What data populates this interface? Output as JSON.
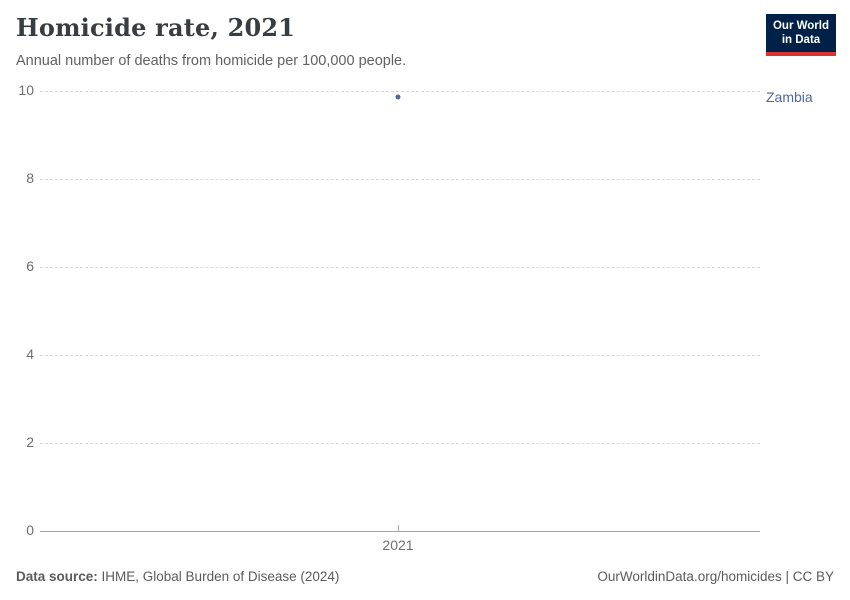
{
  "header": {
    "title": "Homicide rate, 2021",
    "subtitle": "Annual number of deaths from homicide per 100,000 people.",
    "logo": {
      "line1": "Our World",
      "line2": "in Data",
      "bg_color": "#002147",
      "stripe_color": "#d8352e"
    }
  },
  "chart_data": {
    "type": "scatter",
    "title": "Homicide rate, 2021",
    "subtitle": "Annual number of deaths from homicide per 100,000 people.",
    "x": [
      2021
    ],
    "x_ticks": [
      "2021"
    ],
    "y_ticks": [
      0,
      2,
      4,
      6,
      8,
      10
    ],
    "ylim": [
      0,
      10
    ],
    "grid": "horizontal-dashed",
    "legend_position": "entity-label-right",
    "series": [
      {
        "name": "Zambia",
        "color": "#4c6a9c",
        "points": [
          {
            "x": 2021,
            "y": 9.87
          }
        ]
      }
    ]
  },
  "footer": {
    "source_label": "Data source:",
    "source_text": " IHME, Global Burden of Disease (2024)",
    "credit": "OurWorldinData.org/homicides | CC BY"
  }
}
